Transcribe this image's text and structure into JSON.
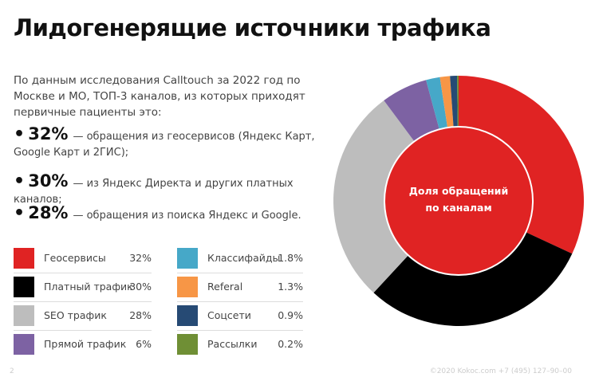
{
  "title": "Лидогенерящие источники трафика",
  "intro": "По данным исследования Calltouch за 2022 год по Москве и МО, ТОП-3 каналов, из которых приходят первичные пациенты это:",
  "bullets": [
    {
      "num": "32%",
      "text": "— обращения из геосервисов (Яндекс Карт, Google Карт и 2ГИС);"
    },
    {
      "num": "30%",
      "text": "— из Яндекс Директа и других платных каналов;"
    },
    {
      "num": "28%",
      "text": "— обращения из поиска Яндекс и Google."
    }
  ],
  "legend": [
    {
      "label": "Геосервисы",
      "value": "32%",
      "color": "#e02323"
    },
    {
      "label": "Платный трафик",
      "value": "30%",
      "color": "#000000"
    },
    {
      "label": "SEO трафик",
      "value": "28%",
      "color": "#bdbdbd"
    },
    {
      "label": "Прямой трафик",
      "value": "6%",
      "color": "#7d62a3"
    },
    {
      "label": "Классифайды",
      "value": "1.8%",
      "color": "#46a8c8"
    },
    {
      "label": "Referal",
      "value": "1.3%",
      "color": "#f79646"
    },
    {
      "label": "Соцсети",
      "value": "0.9%",
      "color": "#264a74"
    },
    {
      "label": "Рассылки",
      "value": "0.2%",
      "color": "#6f8f35"
    }
  ],
  "chart_data": {
    "type": "pie",
    "style": "donut",
    "center_label": "Доля обращений по каналам",
    "center_color": "#e02323",
    "categories": [
      "Геосервисы",
      "Платный трафик",
      "SEO трафик",
      "Прямой трафик",
      "Классифайды",
      "Referal",
      "Соцсети",
      "Рассылки"
    ],
    "values": [
      32,
      30,
      28,
      6,
      1.8,
      1.3,
      0.9,
      0.2
    ],
    "colors": [
      "#e02323",
      "#000000",
      "#bdbdbd",
      "#7d62a3",
      "#46a8c8",
      "#f79646",
      "#264a74",
      "#6f8f35"
    ],
    "start": "top",
    "direction": "clockwise",
    "legend_position": "left"
  },
  "footer": {
    "page": "2",
    "copyright": "©2020 Kokoc.com +7 (495) 127–90–00"
  }
}
